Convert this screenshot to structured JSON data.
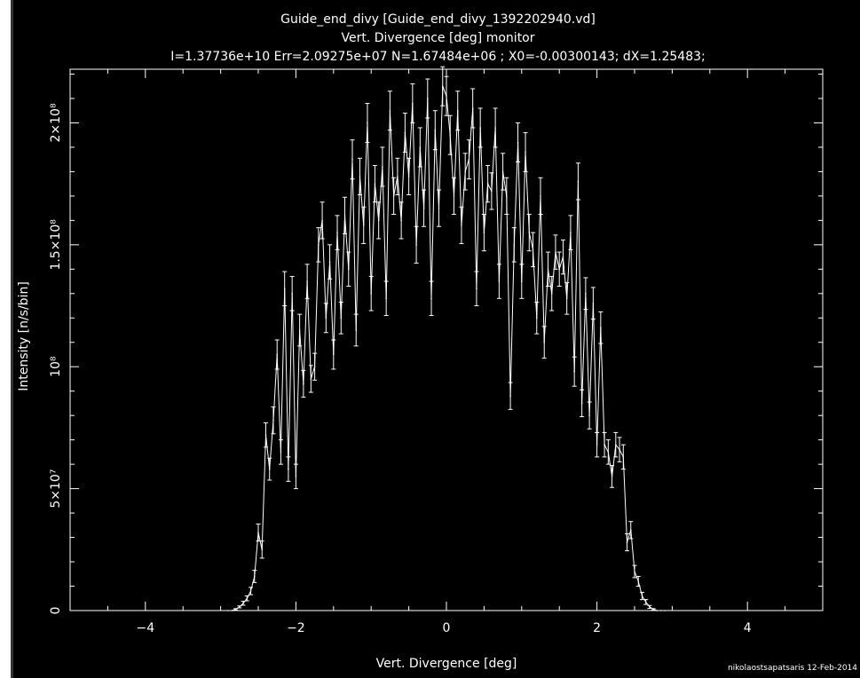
{
  "chart_data": {
    "type": "line",
    "title": "Guide_end_divy [Guide_end_divy_1392202940.vd]",
    "subtitle": "Vert. Divergence [deg] monitor",
    "stats_line": "I=1.37736e+10 Err=2.09275e+07 N=1.67484e+06 ; X0=-0.00300143; dX=1.25483;",
    "xlabel": "Vert. Divergence [deg]",
    "ylabel": "Intensity [n/s/bin]",
    "xlim": [
      -5,
      5
    ],
    "ylim": [
      0,
      222000000
    ],
    "x_ticks": [
      -4,
      -2,
      0,
      2,
      4
    ],
    "x_tick_labels": [
      "−4",
      "−2",
      "0",
      "2",
      "4"
    ],
    "y_ticks": [
      0,
      50000000,
      100000000,
      150000000,
      200000000
    ],
    "y_tick_labels": [
      "0",
      "5×10⁷",
      "10⁸",
      "1.5×10⁸",
      "2×10⁸"
    ],
    "grid": false,
    "line_color": "#ffffff",
    "background_color": "#000000",
    "series": [
      {
        "x": [
          -2.9,
          -2.85,
          -2.8,
          -2.75,
          -2.7,
          -2.65,
          -2.6,
          -2.55,
          -2.5,
          -2.45,
          -2.4,
          -2.35,
          -2.3,
          -2.25,
          -2.2,
          -2.15,
          -2.1,
          -2.05,
          -2.0,
          -1.95,
          -1.9,
          -1.85,
          -1.8,
          -1.75,
          -1.7,
          -1.65,
          -1.6,
          -1.55,
          -1.5,
          -1.45,
          -1.4,
          -1.35,
          -1.3,
          -1.25,
          -1.2,
          -1.15,
          -1.1,
          -1.05,
          -1.0,
          -0.95,
          -0.9,
          -0.85,
          -0.8,
          -0.75,
          -0.7,
          -0.65,
          -0.6,
          -0.55,
          -0.5,
          -0.45,
          -0.4,
          -0.35,
          -0.3,
          -0.25,
          -0.2,
          -0.15,
          -0.1,
          -0.05,
          0.0,
          0.05,
          0.1,
          0.15,
          0.2,
          0.25,
          0.3,
          0.35,
          0.4,
          0.45,
          0.5,
          0.55,
          0.6,
          0.65,
          0.7,
          0.75,
          0.8,
          0.85,
          0.9,
          0.95,
          1.0,
          1.05,
          1.1,
          1.15,
          1.2,
          1.25,
          1.3,
          1.35,
          1.4,
          1.45,
          1.5,
          1.55,
          1.6,
          1.65,
          1.7,
          1.75,
          1.8,
          1.85,
          1.9,
          1.95,
          2.0,
          2.05,
          2.1,
          2.15,
          2.2,
          2.25,
          2.3,
          2.35,
          2.4,
          2.45,
          2.5,
          2.55,
          2.6,
          2.65,
          2.7,
          2.75,
          2.8,
          2.85,
          2.9
        ],
        "y": [
          0,
          0,
          500000,
          1500000,
          3000000,
          5000000,
          8000000,
          14000000,
          32000000,
          25000000,
          72000000,
          58000000,
          78000000,
          105000000,
          65000000,
          132000000,
          58000000,
          130000000,
          55000000,
          115000000,
          93000000,
          135000000,
          95000000,
          100000000,
          150000000,
          160000000,
          120000000,
          143000000,
          105000000,
          155000000,
          120000000,
          162000000,
          140000000,
          185000000,
          115000000,
          178000000,
          158000000,
          200000000,
          130000000,
          175000000,
          160000000,
          182000000,
          128000000,
          205000000,
          170000000,
          178000000,
          160000000,
          196000000,
          178000000,
          208000000,
          150000000,
          190000000,
          165000000,
          210000000,
          128000000,
          197000000,
          165000000,
          215000000,
          211000000,
          195000000,
          170000000,
          205000000,
          158000000,
          180000000,
          185000000,
          206000000,
          132000000,
          198000000,
          155000000,
          175000000,
          172000000,
          198000000,
          135000000,
          180000000,
          170000000,
          88000000,
          150000000,
          192000000,
          135000000,
          188000000,
          155000000,
          148000000,
          120000000,
          170000000,
          110000000,
          140000000,
          130000000,
          147000000,
          140000000,
          145000000,
          128000000,
          155000000,
          98000000,
          176000000,
          85000000,
          130000000,
          80000000,
          126000000,
          68000000,
          116000000,
          68000000,
          65000000,
          55000000,
          68000000,
          66000000,
          63000000,
          28000000,
          33000000,
          16000000,
          12000000,
          6000000,
          3500000,
          1500000,
          500000,
          0,
          0,
          0
        ],
        "err": [
          0,
          0,
          300000,
          400000,
          800000,
          1000000,
          1500000,
          2500000,
          3500000,
          3500000,
          5000000,
          4500000,
          5500000,
          6000000,
          5000000,
          7000000,
          5000000,
          7000000,
          5000000,
          6500000,
          5500000,
          7000000,
          5500000,
          5500000,
          7000000,
          7500000,
          6000000,
          7000000,
          6000000,
          7000000,
          6500000,
          7500000,
          7000000,
          8000000,
          6500000,
          7500000,
          7500000,
          8000000,
          7000000,
          7500000,
          7500000,
          8000000,
          7000000,
          8000000,
          7500000,
          7500000,
          7500000,
          8000000,
          7500000,
          8000000,
          7500000,
          8000000,
          7500000,
          8000000,
          7000000,
          8000000,
          7500000,
          8000000,
          8000000,
          8000000,
          7500000,
          8000000,
          7500000,
          7500000,
          8000000,
          8000000,
          7000000,
          8000000,
          7500000,
          7500000,
          7500000,
          8000000,
          7000000,
          7500000,
          7500000,
          5500000,
          7000000,
          8000000,
          7000000,
          8000000,
          7500000,
          7000000,
          6500000,
          7500000,
          6500000,
          7000000,
          7000000,
          7000000,
          7000000,
          7000000,
          6500000,
          7000000,
          6000000,
          7500000,
          5500000,
          6500000,
          5500000,
          6500000,
          5000000,
          6500000,
          5000000,
          5000000,
          4500000,
          5000000,
          5000000,
          5000000,
          3500000,
          3500000,
          2500000,
          2000000,
          1500000,
          1000000,
          600000,
          300000,
          0,
          0,
          0
        ]
      }
    ]
  },
  "footer": {
    "credit": "nikolaostsapatsaris 12-Feb-2014"
  }
}
